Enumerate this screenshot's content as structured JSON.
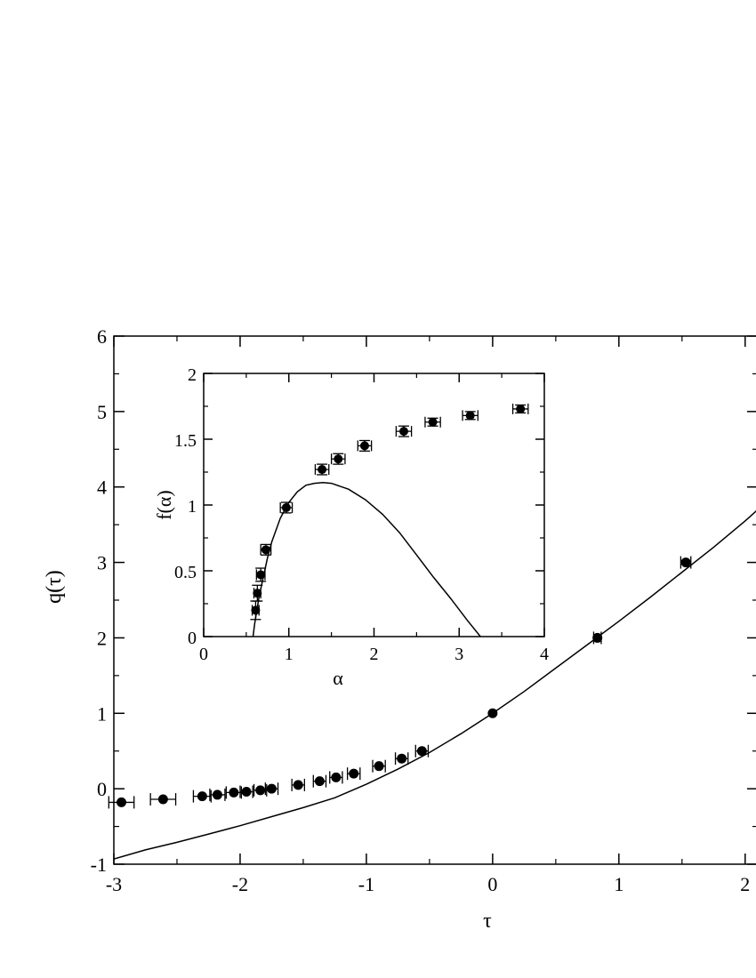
{
  "chart_data": [
    {
      "id": "main",
      "type": "scatter",
      "xlabel": "τ",
      "ylabel": "q(τ)",
      "xlim": [
        -3,
        2.1
      ],
      "ylim": [
        -1,
        6
      ],
      "xticks": [
        -3,
        -2,
        -1,
        0,
        1,
        2
      ],
      "yticks": [
        -1,
        0,
        1,
        2,
        3,
        4,
        5,
        6
      ],
      "xtick_labels": [
        "-3",
        "-2",
        "-1",
        "0",
        "1",
        "2"
      ],
      "ytick_labels": [
        "-1",
        "0",
        "1",
        "2",
        "3",
        "4",
        "5",
        "6"
      ],
      "grid": false,
      "points": [
        {
          "x": -2.94,
          "y": -0.18,
          "xerr": 0.1
        },
        {
          "x": -2.61,
          "y": -0.14,
          "xerr": 0.1
        },
        {
          "x": -2.3,
          "y": -0.1,
          "xerr": 0.07
        },
        {
          "x": -2.18,
          "y": -0.08,
          "xerr": 0.06
        },
        {
          "x": -2.05,
          "y": -0.05,
          "xerr": 0.06
        },
        {
          "x": -1.95,
          "y": -0.04,
          "xerr": 0.05
        },
        {
          "x": -1.84,
          "y": -0.02,
          "xerr": 0.05
        },
        {
          "x": -1.75,
          "y": 0.0,
          "xerr": 0.05
        },
        {
          "x": -1.54,
          "y": 0.05,
          "xerr": 0.05
        },
        {
          "x": -1.37,
          "y": 0.1,
          "xerr": 0.05
        },
        {
          "x": -1.24,
          "y": 0.15,
          "xerr": 0.05
        },
        {
          "x": -1.1,
          "y": 0.2,
          "xerr": 0.05
        },
        {
          "x": -0.9,
          "y": 0.3,
          "xerr": 0.05
        },
        {
          "x": -0.72,
          "y": 0.4,
          "xerr": 0.05
        },
        {
          "x": -0.56,
          "y": 0.5,
          "xerr": 0.05
        },
        {
          "x": 0.0,
          "y": 1.0,
          "xerr": 0.0
        },
        {
          "x": 0.83,
          "y": 2.0,
          "xerr": 0.03
        },
        {
          "x": 1.53,
          "y": 3.0,
          "xerr": 0.04
        }
      ],
      "curve": {
        "x": [
          -3.0,
          -2.75,
          -2.5,
          -2.25,
          -2.0,
          -1.75,
          -1.5,
          -1.25,
          -1.0,
          -0.75,
          -0.5,
          -0.25,
          0.0,
          0.25,
          0.5,
          0.75,
          1.0,
          1.25,
          1.5,
          1.75,
          2.0,
          2.1
        ],
        "y": [
          -0.93,
          -0.81,
          -0.71,
          -0.6,
          -0.49,
          -0.37,
          -0.25,
          -0.12,
          0.06,
          0.26,
          0.48,
          0.73,
          1.0,
          1.29,
          1.6,
          1.91,
          2.22,
          2.54,
          2.87,
          3.2,
          3.55,
          3.7
        ]
      }
    },
    {
      "id": "inset",
      "type": "scatter",
      "xlabel": "α",
      "ylabel": "f(α)",
      "xlim": [
        0,
        4
      ],
      "ylim": [
        0,
        2
      ],
      "xticks": [
        0,
        1,
        2,
        3,
        4
      ],
      "yticks": [
        0,
        0.5,
        1,
        1.5,
        2
      ],
      "xtick_labels": [
        "0",
        "1",
        "2",
        "3",
        "4"
      ],
      "ytick_labels": [
        "0",
        "0.5",
        "1",
        "1.5",
        "2"
      ],
      "grid": false,
      "points": [
        {
          "x": 0.61,
          "y": 0.2,
          "xerr": 0.04,
          "yerr": 0.07
        },
        {
          "x": 0.63,
          "y": 0.33,
          "xerr": 0.04,
          "yerr": 0.06
        },
        {
          "x": 0.67,
          "y": 0.47,
          "xerr": 0.05,
          "yerr": 0.05
        },
        {
          "x": 0.73,
          "y": 0.66,
          "xerr": 0.06,
          "yerr": 0.04
        },
        {
          "x": 0.97,
          "y": 0.98,
          "xerr": 0.07,
          "yerr": 0.04
        },
        {
          "x": 1.39,
          "y": 1.27,
          "xerr": 0.08,
          "yerr": 0.04
        },
        {
          "x": 1.58,
          "y": 1.35,
          "xerr": 0.08,
          "yerr": 0.04
        },
        {
          "x": 1.89,
          "y": 1.45,
          "xerr": 0.08,
          "yerr": 0.04
        },
        {
          "x": 2.35,
          "y": 1.56,
          "xerr": 0.09,
          "yerr": 0.04
        },
        {
          "x": 2.69,
          "y": 1.63,
          "xerr": 0.09,
          "yerr": 0.03
        },
        {
          "x": 3.13,
          "y": 1.68,
          "xerr": 0.09,
          "yerr": 0.03
        },
        {
          "x": 3.72,
          "y": 1.73,
          "xerr": 0.09,
          "yerr": 0.03
        }
      ],
      "curve": {
        "x": [
          0.58,
          0.6,
          0.65,
          0.7,
          0.75,
          0.8,
          0.9,
          1.0,
          1.1,
          1.2,
          1.3,
          1.4,
          1.5,
          1.7,
          1.9,
          2.1,
          2.3,
          2.5,
          2.7,
          2.9,
          3.1,
          3.25
        ],
        "y": [
          0.0,
          0.1,
          0.3,
          0.45,
          0.6,
          0.72,
          0.9,
          1.02,
          1.1,
          1.15,
          1.165,
          1.17,
          1.165,
          1.12,
          1.04,
          0.93,
          0.79,
          0.62,
          0.45,
          0.29,
          0.12,
          0.0
        ]
      }
    }
  ]
}
